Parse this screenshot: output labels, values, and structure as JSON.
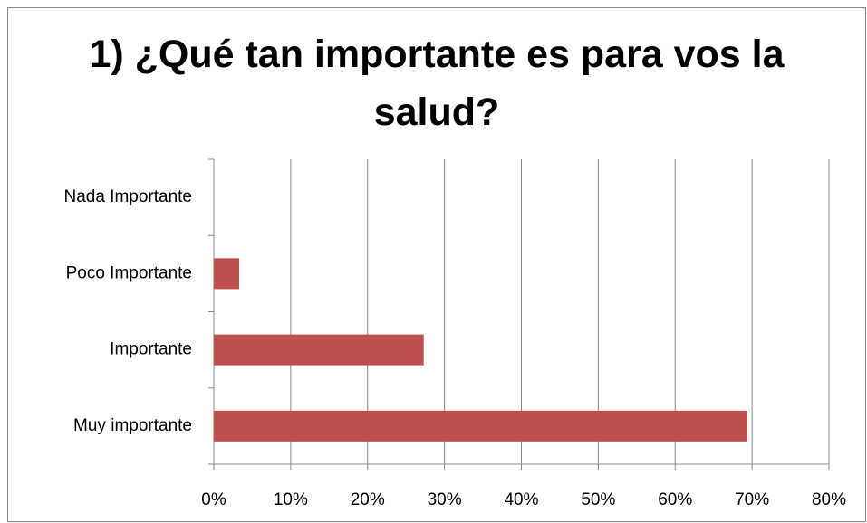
{
  "chart_data": {
    "type": "hbar",
    "title": "1) ¿Qué tan importante es para vos la salud?",
    "categories": [
      "Nada Importante",
      "Poco Importante",
      "Importante",
      "Muy importante"
    ],
    "values": [
      0,
      3.3,
      27.3,
      69.4
    ],
    "color": "#c0504d",
    "xlim": [
      0,
      80
    ],
    "xticks": [
      {
        "value": 0,
        "label": "0%"
      },
      {
        "value": 10,
        "label": "10%"
      },
      {
        "value": 20,
        "label": "20%"
      },
      {
        "value": 30,
        "label": "30%"
      },
      {
        "value": 40,
        "label": "40%"
      },
      {
        "value": 50,
        "label": "50%"
      },
      {
        "value": 60,
        "label": "60%"
      },
      {
        "value": 70,
        "label": "70%"
      },
      {
        "value": 80,
        "label": "80%"
      }
    ],
    "grid": true
  }
}
